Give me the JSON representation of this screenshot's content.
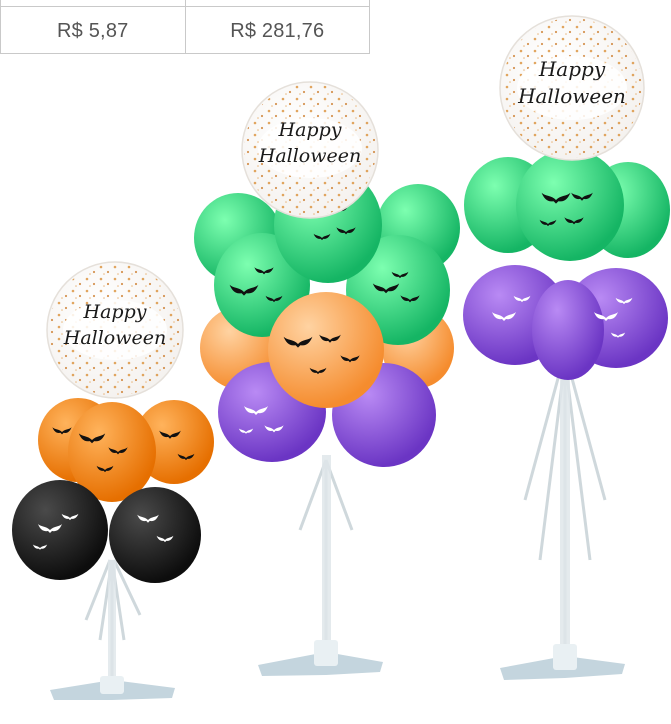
{
  "price_row": {
    "unit_price": "R$ 5,87",
    "total_price": "R$ 281,76"
  },
  "product_image": {
    "bubble_text_line1": "Happy",
    "bubble_text_line2": "Halloween",
    "stands": [
      {
        "name": "small-stand",
        "balloon_colors": [
          "#f08a1c",
          "#1b1b1b"
        ]
      },
      {
        "name": "medium-stand",
        "balloon_colors": [
          "#2ecc71",
          "#f6a04d",
          "#8e44c8"
        ]
      },
      {
        "name": "tall-stand",
        "balloon_colors": [
          "#2ecc71",
          "#8e5be0"
        ]
      }
    ]
  }
}
